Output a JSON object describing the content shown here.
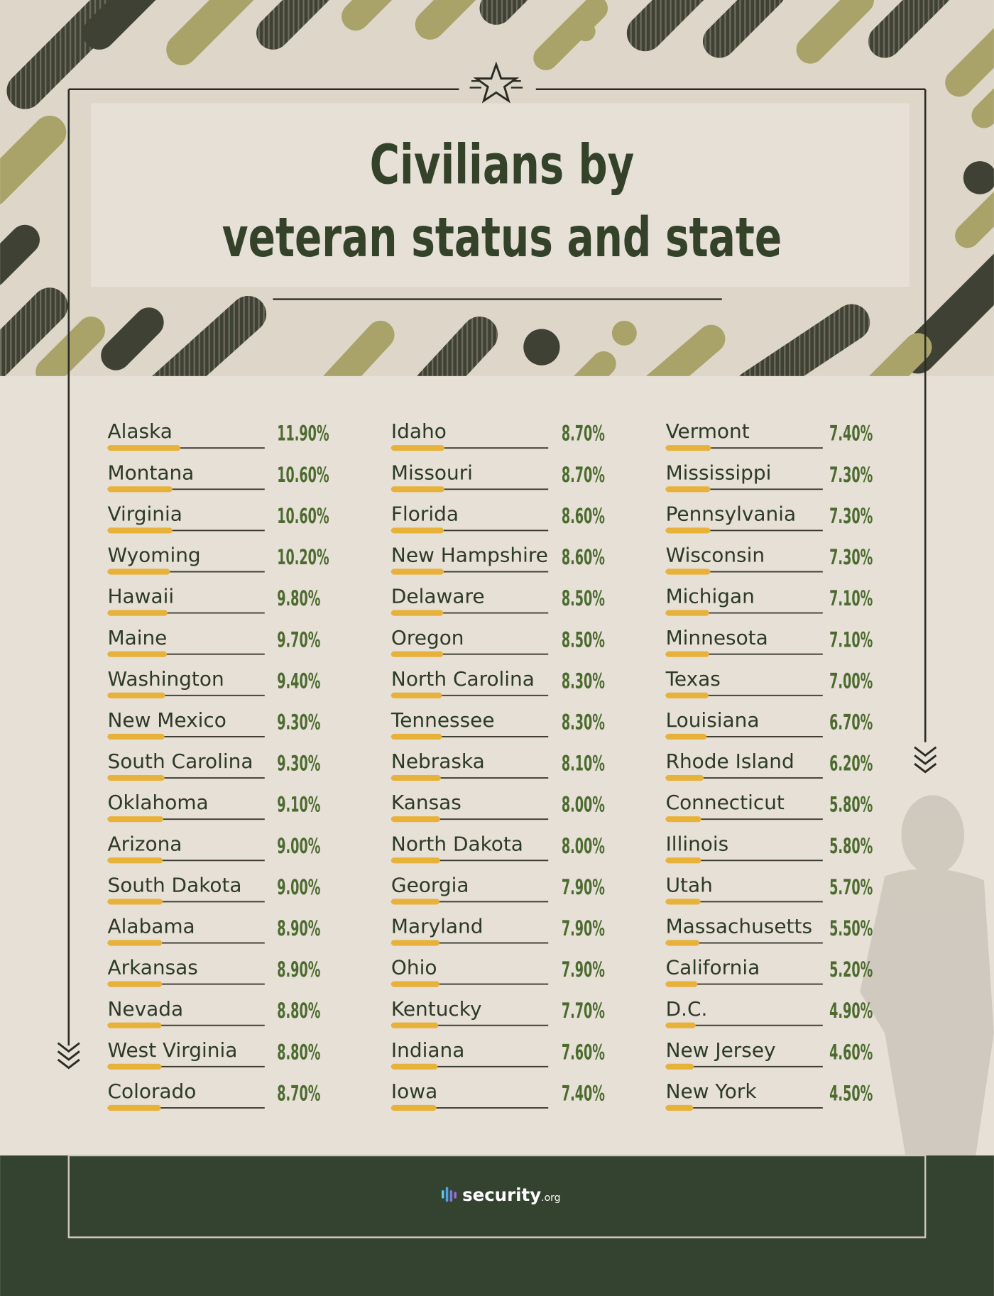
{
  "chart_data": {
    "type": "bar",
    "title": [
      "Civilians by",
      "veteran status and state"
    ],
    "categories": [
      "Alaska",
      "Montana",
      "Virginia",
      "Wyoming",
      "Hawaii",
      "Maine",
      "Washington",
      "New Mexico",
      "South Carolina",
      "Oklahoma",
      "Arizona",
      "South Dakota",
      "Alabama",
      "Arkansas",
      "Nevada",
      "West Virginia",
      "Colorado",
      "Idaho",
      "Missouri",
      "Florida",
      "New Hampshire",
      "Delaware",
      "Oregon",
      "North Carolina",
      "Tennessee",
      "Nebraska",
      "Kansas",
      "North Dakota",
      "Georgia",
      "Maryland",
      "Ohio",
      "Kentucky",
      "Indiana",
      "Iowa",
      "Vermont",
      "Mississippi",
      "Pennsylvania",
      "Wisconsin",
      "Michigan",
      "Minnesota",
      "Texas",
      "Louisiana",
      "Rhode Island",
      "Connecticut",
      "Illinois",
      "Utah",
      "Massachusetts",
      "California",
      "D.C.",
      "New Jersey",
      "New York"
    ],
    "values": [
      11.9,
      10.6,
      10.6,
      10.2,
      9.8,
      9.7,
      9.4,
      9.3,
      9.3,
      9.1,
      9.0,
      9.0,
      8.9,
      8.9,
      8.8,
      8.8,
      8.7,
      8.7,
      8.7,
      8.6,
      8.6,
      8.5,
      8.5,
      8.3,
      8.3,
      8.1,
      8.0,
      8.0,
      7.9,
      7.9,
      7.9,
      7.7,
      7.6,
      7.4,
      7.4,
      7.3,
      7.3,
      7.3,
      7.1,
      7.1,
      7.0,
      6.7,
      6.2,
      5.8,
      5.8,
      5.7,
      5.5,
      5.2,
      4.9,
      4.6,
      4.5
    ],
    "value_labels": [
      "11.90%",
      "10.60%",
      "10.60%",
      "10.20%",
      "9.80%",
      "9.70%",
      "9.40%",
      "9.30%",
      "9.30%",
      "9.10%",
      "9.00%",
      "9.00%",
      "8.90%",
      "8.90%",
      "8.80%",
      "8.80%",
      "8.70%",
      "8.70%",
      "8.70%",
      "8.60%",
      "8.60%",
      "8.50%",
      "8.50%",
      "8.30%",
      "8.30%",
      "8.10%",
      "8.00%",
      "8.00%",
      "7.90%",
      "7.90%",
      "7.90%",
      "7.70%",
      "7.60%",
      "7.40%",
      "7.40%",
      "7.30%",
      "7.30%",
      "7.30%",
      "7.10%",
      "7.10%",
      "7.00%",
      "6.70%",
      "6.20%",
      "5.80%",
      "5.80%",
      "5.70%",
      "5.50%",
      "5.20%",
      "4.90%",
      "4.60%",
      "4.50%"
    ],
    "color": "#e8b23a"
  },
  "footer": {
    "logo_main": "security",
    "logo_suffix": ".org"
  }
}
